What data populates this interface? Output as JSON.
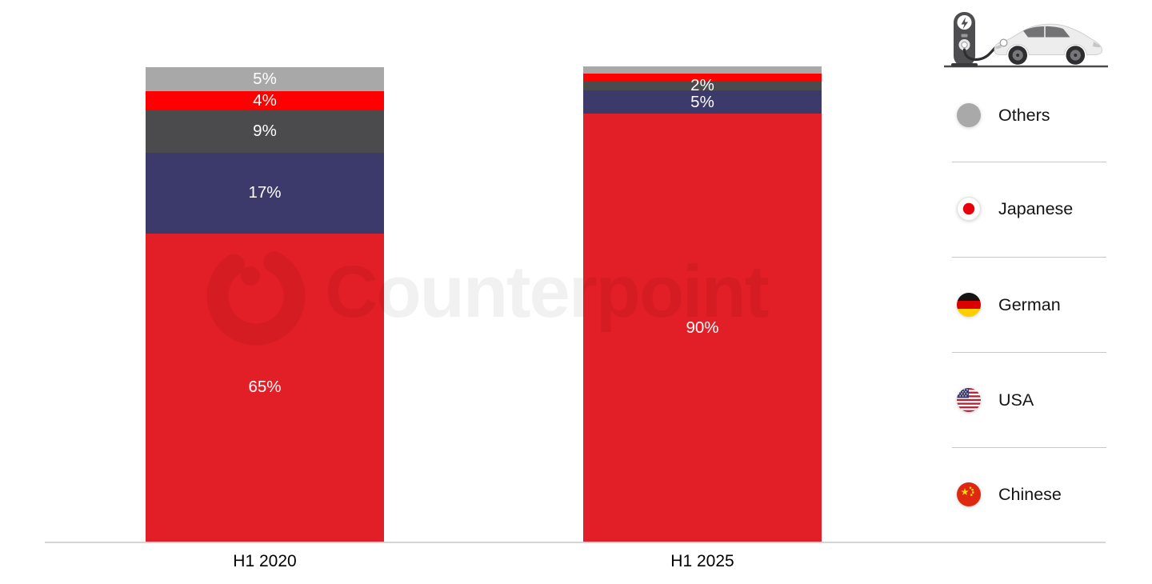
{
  "chart_data": {
    "type": "bar",
    "stacked": true,
    "categories": [
      "H1 2020",
      "H1 2025"
    ],
    "unit": "%",
    "ylim": [
      0,
      100
    ],
    "grid": false,
    "legend_position": "right",
    "series": [
      {
        "name": "Others",
        "color": "#A8A8A8",
        "values": [
          5,
          1.5
        ],
        "labels": [
          "5%",
          ""
        ]
      },
      {
        "name": "Japanese",
        "color": "#FE0000",
        "values": [
          4,
          1.5
        ],
        "labels": [
          "4%",
          ""
        ]
      },
      {
        "name": "German",
        "color": "#4B4B4D",
        "values": [
          9,
          2
        ],
        "labels": [
          "9%",
          "2%"
        ]
      },
      {
        "name": "USA",
        "color": "#3B3A6A",
        "values": [
          17,
          5
        ],
        "labels": [
          "17%",
          "5%"
        ]
      },
      {
        "name": "Chinese",
        "color": "#E21E26",
        "values": [
          65,
          90
        ],
        "labels": [
          "65%",
          "90%"
        ]
      }
    ]
  },
  "legend": {
    "items": [
      {
        "label": "Others",
        "icon": "gray-circle"
      },
      {
        "label": "Japanese",
        "icon": "japan-flag"
      },
      {
        "label": "German",
        "icon": "germany-flag"
      },
      {
        "label": "USA",
        "icon": "usa-flag"
      },
      {
        "label": "Chinese",
        "icon": "china-flag"
      }
    ]
  },
  "watermark": {
    "text": "Counterpoint"
  },
  "illustration": {
    "name": "ev-car-charging"
  },
  "colors": {
    "axis_line": "#D5D5D5",
    "legend_separator": "#C7C7C7",
    "segment_label_text": "#FFFFFF",
    "axis_label_text": "#000000"
  }
}
